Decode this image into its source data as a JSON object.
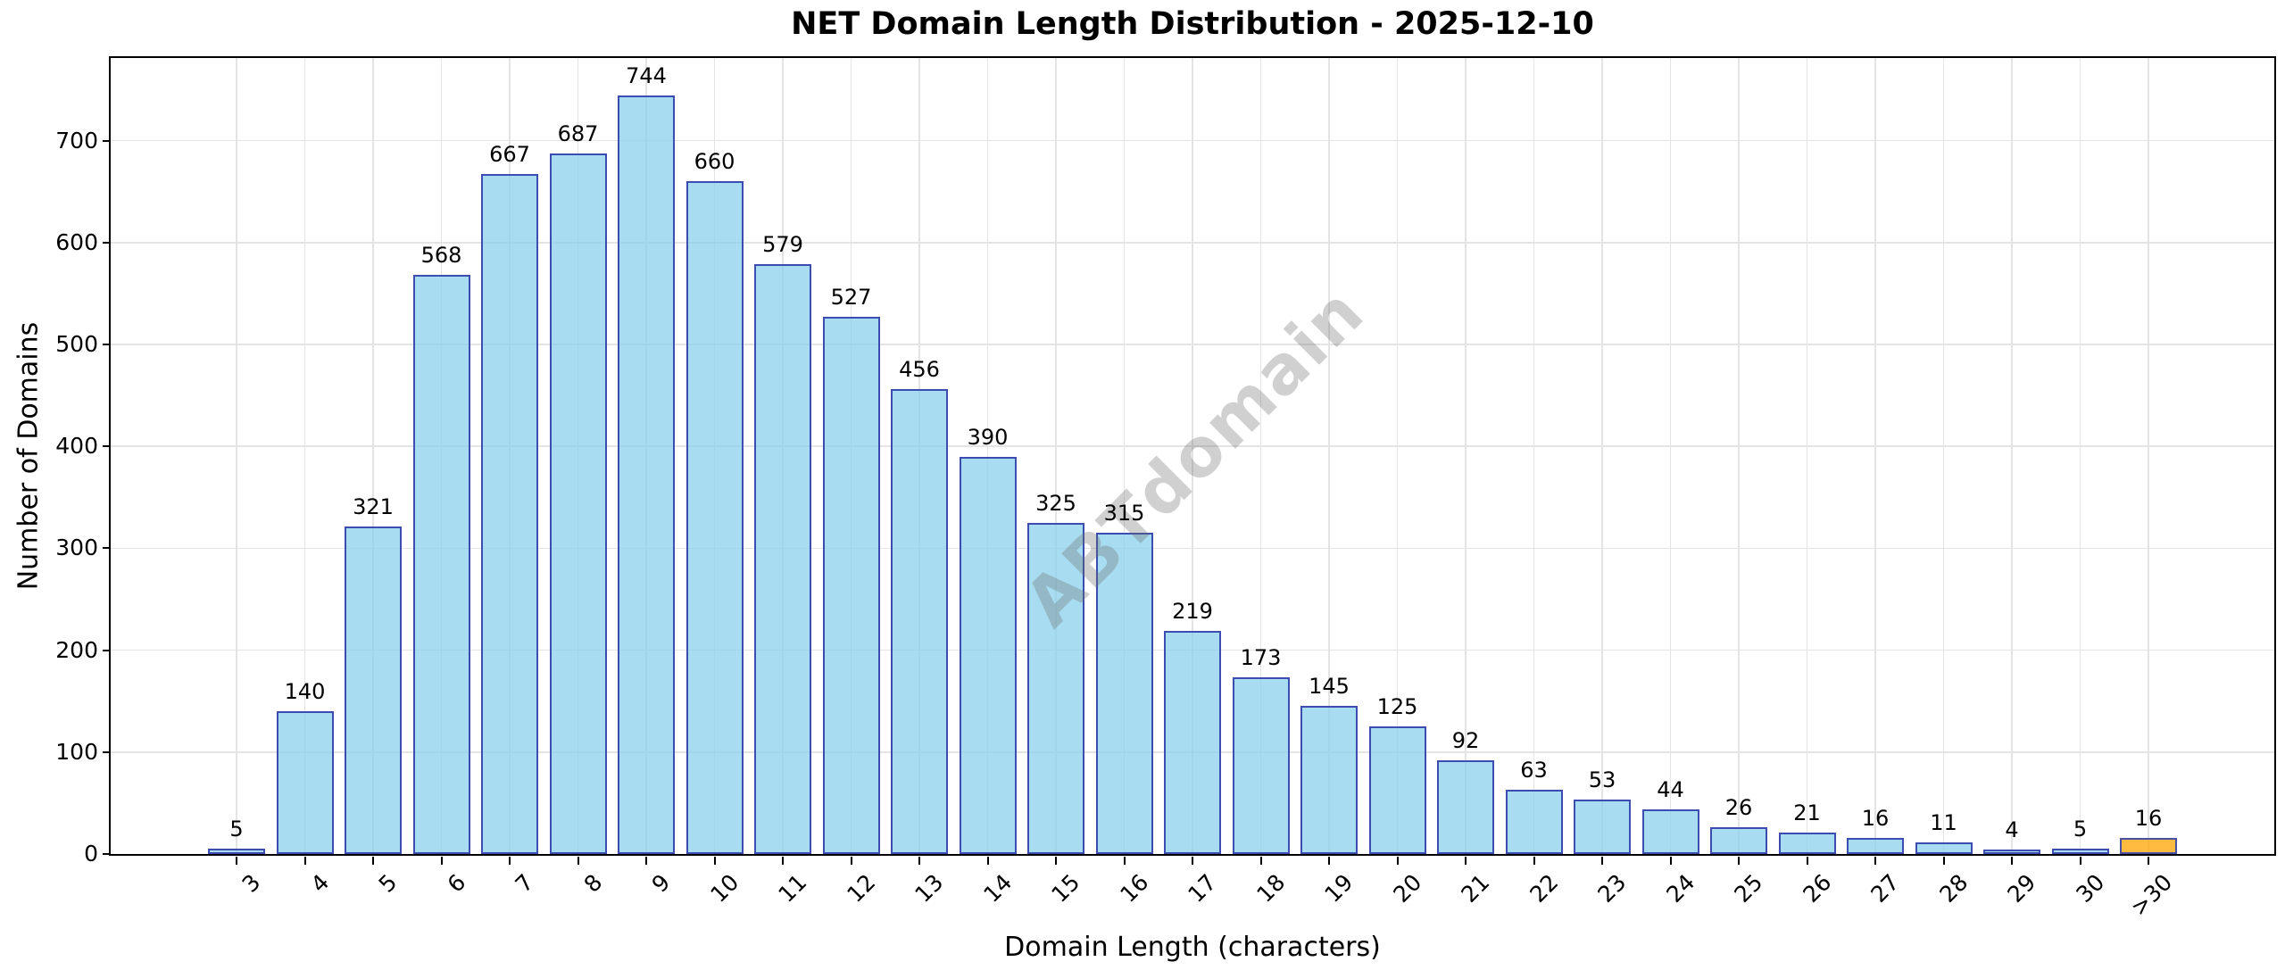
{
  "watermark": "ABTdomain",
  "chart_data": {
    "type": "bar",
    "title": "NET Domain Length Distribution - 2025-12-10",
    "xlabel": "Domain Length (characters)",
    "ylabel": "Number of Domains",
    "categories": [
      "3",
      "4",
      "5",
      "6",
      "7",
      "8",
      "9",
      "10",
      "11",
      "12",
      "13",
      "14",
      "15",
      "16",
      "17",
      "18",
      "19",
      "20",
      "21",
      "22",
      "23",
      "24",
      "25",
      "26",
      "27",
      "28",
      "29",
      "30",
      ">30"
    ],
    "values": [
      5,
      140,
      321,
      568,
      667,
      687,
      744,
      660,
      579,
      527,
      456,
      390,
      325,
      315,
      219,
      173,
      145,
      125,
      92,
      63,
      53,
      44,
      26,
      21,
      16,
      11,
      4,
      5,
      16
    ],
    "highlight_index": 28,
    "value_labels_shown": true,
    "ylim": [
      0,
      781
    ],
    "yticks": [
      0,
      100,
      200,
      300,
      400,
      500,
      600,
      700
    ],
    "grid": "both",
    "legend": "none",
    "colors": {
      "bar_fill": "rgba(135, 206, 235, 0.72)",
      "bar_edge": "#3c4cb0",
      "highlight_fill": "rgba(255, 166, 10, 0.78)",
      "highlight_edge": "#4a4fa5",
      "gridline": "#e4e4e4",
      "text": "#000000"
    }
  }
}
